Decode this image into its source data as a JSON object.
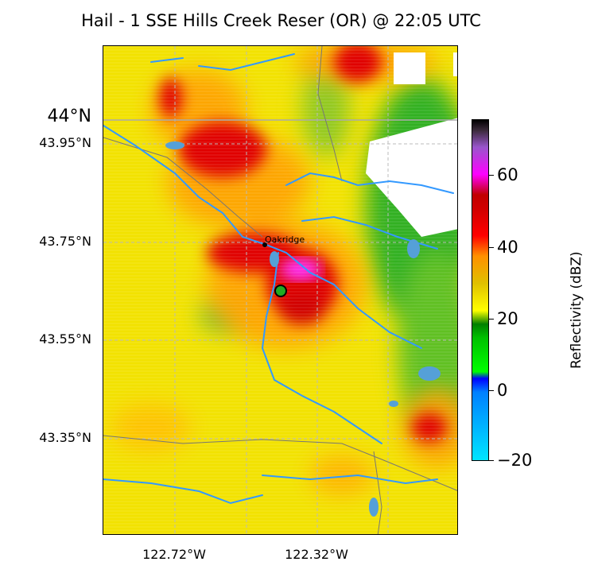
{
  "title": "Hail - 1 SSE Hills Creek Reser (OR) @ 22:05 UTC",
  "map": {
    "lat_labels": {
      "lat_44": "44°N",
      "lat_4395": "43.95°N",
      "lat_4375": "43.75°N",
      "lat_4355": "43.55°N",
      "lat_4335": "43.35°N"
    },
    "lon_labels": {
      "lon_12272": "122.72°W",
      "lon_12232": "122.32°W"
    },
    "city_label": "Oakridge",
    "report_marker": "hail-report"
  },
  "colorbar": {
    "label": "Reflectivity (dBZ)",
    "ticks": [
      "60",
      "40",
      "20",
      "0",
      "−20"
    ],
    "range": [
      -20,
      75
    ]
  },
  "colors": {
    "green": "#00b000",
    "yellow": "#f0e000",
    "orange": "#ff9900",
    "red": "#e00000",
    "magenta": "#ff33ff",
    "river": "#3399ff",
    "marker": "#22aa22"
  }
}
